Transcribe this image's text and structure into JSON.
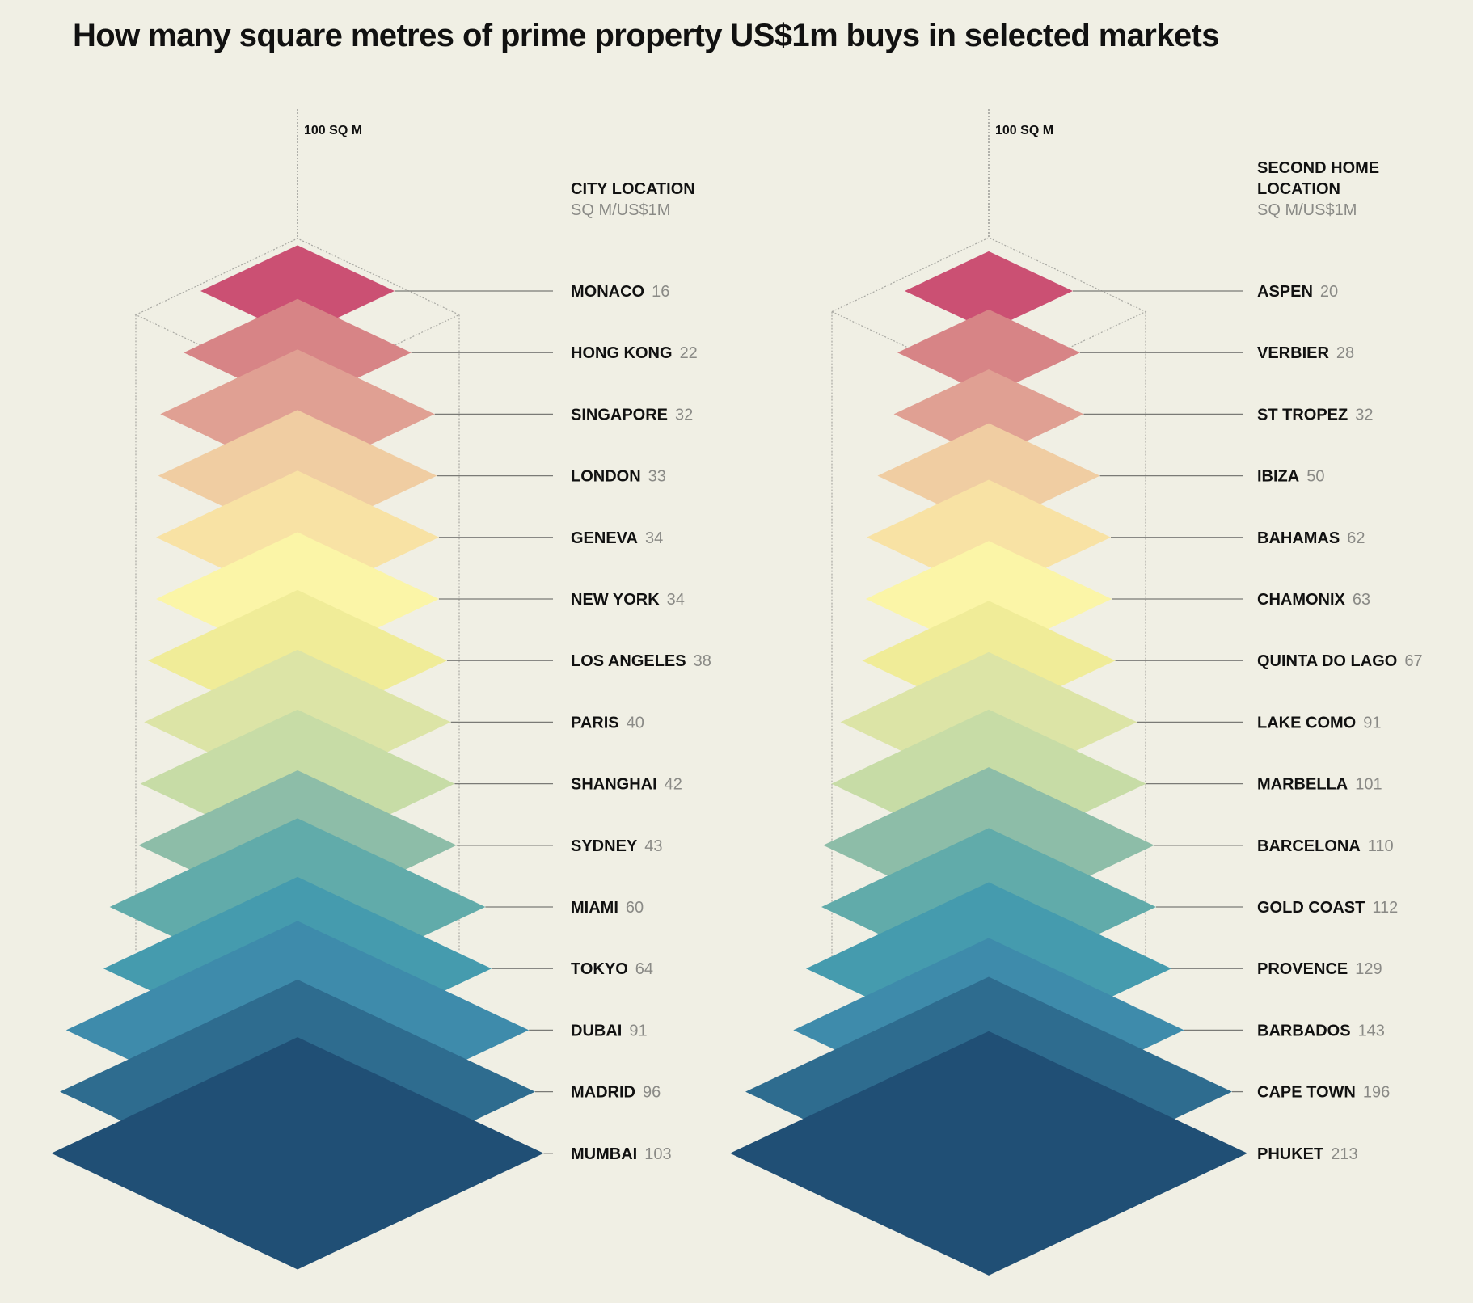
{
  "title": "How many square metres of prime property US$1m buys in selected markets",
  "chart_data": [
    {
      "type": "stacked-isometric-area",
      "title": "CITY LOCATION",
      "header_lines": [
        "CITY LOCATION"
      ],
      "unit_label": "SQ M/US$1M",
      "reference_label": "100 SQ M",
      "reference_value": 100,
      "categories": [
        "MONACO",
        "HONG KONG",
        "SINGAPORE",
        "LONDON",
        "GENEVA",
        "NEW YORK",
        "LOS ANGELES",
        "PARIS",
        "SHANGHAI",
        "SYDNEY",
        "MIAMI",
        "TOKYO",
        "DUBAI",
        "MADRID",
        "MUMBAI"
      ],
      "values": [
        16,
        22,
        32,
        33,
        34,
        34,
        38,
        40,
        42,
        43,
        60,
        64,
        91,
        96,
        103
      ],
      "colors": [
        "#cb5073",
        "#d78486",
        "#e0a093",
        "#f0cda2",
        "#f8e2a4",
        "#fbf5a7",
        "#f0ec98",
        "#dce4a6",
        "#c7dca6",
        "#8dbda8",
        "#61abaa",
        "#459bae",
        "#3e8bab",
        "#2e6c8f",
        "#204f75"
      ]
    },
    {
      "type": "stacked-isometric-area",
      "title": "SECOND HOME LOCATION",
      "header_lines": [
        "SECOND HOME",
        "LOCATION"
      ],
      "unit_label": "SQ M/US$1M",
      "reference_label": "100 SQ M",
      "reference_value": 100,
      "categories": [
        "ASPEN",
        "VERBIER",
        "ST TROPEZ",
        "IBIZA",
        "BAHAMAS",
        "CHAMONIX",
        "QUINTA DO LAGO",
        "LAKE COMO",
        "MARBELLA",
        "BARCELONA",
        "GOLD COAST",
        "PROVENCE",
        "BARBADOS",
        "CAPE TOWN",
        "PHUKET"
      ],
      "values": [
        20,
        28,
        32,
        50,
        62,
        63,
        67,
        91,
        101,
        110,
        112,
        129,
        143,
        196,
        213
      ],
      "colors": [
        "#cb5073",
        "#d78486",
        "#e0a093",
        "#f0cda2",
        "#f8e2a4",
        "#fbf5a7",
        "#f0ec98",
        "#dce4a6",
        "#c7dca6",
        "#8dbda8",
        "#61abaa",
        "#459bae",
        "#3e8bab",
        "#2e6c8f",
        "#204f75"
      ]
    }
  ]
}
